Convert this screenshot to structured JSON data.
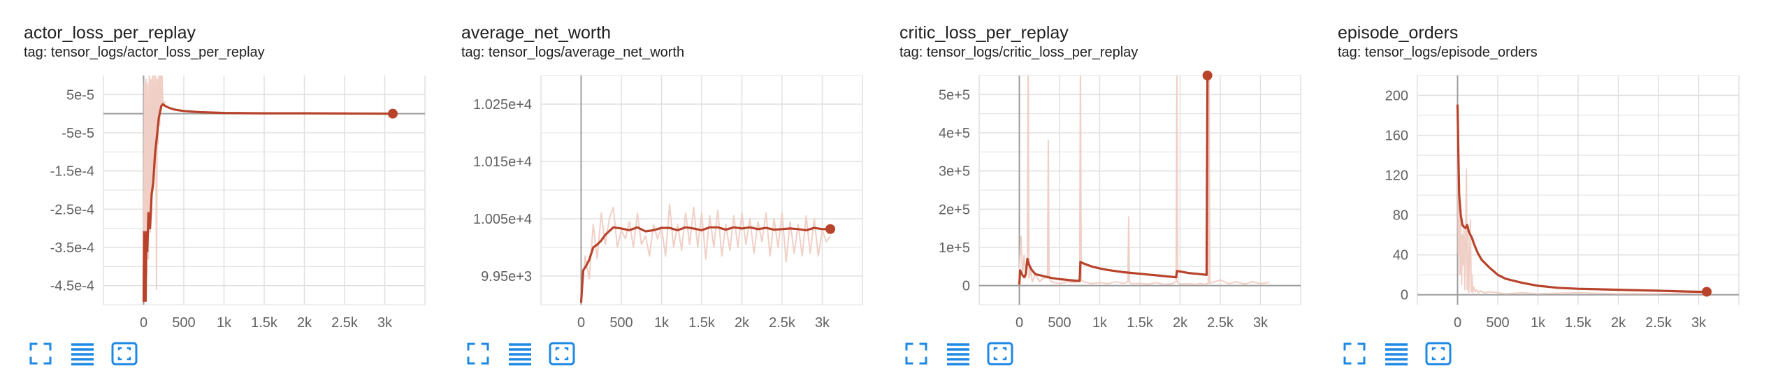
{
  "colors": {
    "smoothed": "#b8432b",
    "raw": "#f0cfc6",
    "grid": "#e0e0e0",
    "axis": "#9e9e9e",
    "tick_text": "#616161",
    "icon": "#1e88e5"
  },
  "toolbar_icons": [
    "fullscreen-icon",
    "toggle-log-scale-icon",
    "fit-domain-icon"
  ],
  "cards": [
    {
      "title": "actor_loss_per_replay",
      "tag": "tag: tensor_logs/actor_loss_per_replay",
      "x_ticks": [
        "0",
        "500",
        "1k",
        "1.5k",
        "2k",
        "2.5k",
        "3k"
      ],
      "y_ticks": [
        "5e-5",
        "-5e-5",
        "-1.5e-4",
        "-2.5e-4",
        "-3.5e-4",
        "-4.5e-4"
      ]
    },
    {
      "title": "average_net_worth",
      "tag": "tag: tensor_logs/average_net_worth",
      "x_ticks": [
        "0",
        "500",
        "1k",
        "1.5k",
        "2k",
        "2.5k",
        "3k"
      ],
      "y_ticks": [
        "1.025e+4",
        "1.015e+4",
        "1.005e+4",
        "9.95e+3"
      ]
    },
    {
      "title": "critic_loss_per_replay",
      "tag": "tag: tensor_logs/critic_loss_per_replay",
      "x_ticks": [
        "0",
        "500",
        "1k",
        "1.5k",
        "2k",
        "2.5k",
        "3k"
      ],
      "y_ticks": [
        "5e+5",
        "4e+5",
        "3e+5",
        "2e+5",
        "1e+5",
        "0"
      ]
    },
    {
      "title": "episode_orders",
      "tag": "tag: tensor_logs/episode_orders",
      "x_ticks": [
        "0",
        "500",
        "1k",
        "1.5k",
        "2k",
        "2.5k",
        "3k"
      ],
      "y_ticks": [
        "200",
        "160",
        "120",
        "80",
        "40",
        "0"
      ]
    }
  ],
  "chart_data": [
    {
      "type": "line",
      "title": "actor_loss_per_replay",
      "xlim": [
        -500,
        3500
      ],
      "ylim": [
        -0.0005,
        0.0001
      ],
      "yticks": [
        5e-05,
        -5e-05,
        -0.00015,
        -0.00025,
        -0.00035,
        -0.00045
      ],
      "xticks": [
        0,
        500,
        1000,
        1500,
        2000,
        2500,
        3000
      ],
      "grid": true,
      "series": [
        {
          "role": "raw",
          "x": [
            0,
            10,
            20,
            30,
            40,
            50,
            60,
            70,
            80,
            90,
            100,
            110,
            120,
            130,
            140,
            150,
            160,
            170,
            180,
            190,
            200,
            210,
            220,
            230,
            240,
            250,
            260,
            270
          ],
          "y": [
            -0.00049,
            8e-05,
            -0.00046,
            9e-05,
            -0.00042,
            8e-05,
            -0.00038,
            0.0001,
            -0.00031,
            9e-05,
            -0.00026,
            0.0001,
            -0.0002,
            0.00011,
            -0.00014,
            0.00011,
            -0.00046,
            9e-05,
            -8e-05,
            0.0001,
            -3e-05,
            0.00012,
            1e-05,
            0.0001,
            2e-05,
            3e-05,
            3e-05,
            3e-05
          ]
        },
        {
          "role": "smoothed",
          "x": [
            0,
            5,
            15,
            25,
            35,
            45,
            60,
            80,
            100,
            120,
            140,
            160,
            175,
            190,
            205,
            220,
            240,
            270,
            320,
            400,
            500,
            700,
            1000,
            1500,
            2000,
            2500,
            3000,
            3100
          ],
          "y": [
            -0.00049,
            -0.00031,
            -0.00037,
            -0.00049,
            -0.00031,
            -0.00036,
            -0.00026,
            -0.0003,
            -0.00021,
            -0.00018,
            -0.00011,
            -7e-05,
            -4e-05,
            -1e-05,
            5e-06,
            2e-05,
            2.5e-05,
            2e-05,
            1.5e-05,
            1e-05,
            7e-06,
            4e-06,
            2e-06,
            1e-06,
            1e-06,
            5e-07,
            2e-07,
            0.0
          ]
        }
      ]
    },
    {
      "type": "line",
      "title": "average_net_worth",
      "xlim": [
        -500,
        3500
      ],
      "ylim": [
        9900,
        10300
      ],
      "yticks": [
        10250,
        10150,
        10050,
        9950
      ],
      "xticks": [
        0,
        500,
        1000,
        1500,
        2000,
        2500,
        3000
      ],
      "grid": true,
      "series": [
        {
          "role": "raw",
          "x": [
            0,
            50,
            100,
            150,
            200,
            250,
            300,
            350,
            400,
            450,
            500,
            550,
            600,
            650,
            700,
            750,
            800,
            850,
            900,
            950,
            1000,
            1050,
            1100,
            1150,
            1200,
            1250,
            1300,
            1350,
            1400,
            1450,
            1500,
            1550,
            1600,
            1650,
            1700,
            1750,
            1800,
            1850,
            1900,
            1950,
            2000,
            2050,
            2100,
            2150,
            2200,
            2250,
            2300,
            2350,
            2400,
            2450,
            2500,
            2550,
            2600,
            2650,
            2700,
            2750,
            2800,
            2850,
            2900,
            2950,
            3000,
            3050,
            3100
          ],
          "y": [
            9905,
            9985,
            9945,
            10040,
            9980,
            10060,
            10005,
            10050,
            10070,
            10000,
            10030,
            10015,
            10045,
            10000,
            10060,
            10005,
            10020,
            9985,
            10040,
            10015,
            10035,
            9985,
            10075,
            10000,
            10040,
            9995,
            10060,
            10005,
            10070,
            10000,
            10060,
            9980,
            10055,
            10000,
            10065,
            9985,
            10040,
            9995,
            10055,
            10000,
            10060,
            10005,
            10050,
            9990,
            10045,
            10010,
            10060,
            9985,
            10050,
            10000,
            10060,
            9975,
            10045,
            9990,
            10040,
            9985,
            10055,
            9990,
            10050,
            9985,
            10030,
            10010,
            10020
          ]
        },
        {
          "role": "smoothed",
          "x": [
            0,
            25,
            50,
            100,
            150,
            200,
            250,
            300,
            400,
            500,
            600,
            700,
            800,
            900,
            1000,
            1100,
            1200,
            1300,
            1400,
            1500,
            1600,
            1700,
            1800,
            1900,
            2000,
            2100,
            2200,
            2300,
            2400,
            2500,
            2600,
            2700,
            2800,
            2900,
            3000,
            3100
          ],
          "y": [
            9905,
            9960,
            9965,
            9978,
            10000,
            10005,
            10012,
            10022,
            10035,
            10033,
            10030,
            10035,
            10028,
            10030,
            10034,
            10034,
            10030,
            10035,
            10033,
            10030,
            10035,
            10035,
            10031,
            10035,
            10033,
            10035,
            10032,
            10034,
            10031,
            10032,
            10033,
            10032,
            10030,
            10034,
            10032,
            10032
          ]
        }
      ]
    },
    {
      "type": "line",
      "title": "critic_loss_per_replay",
      "xlim": [
        -500,
        3500
      ],
      "ylim": [
        -50000,
        550000
      ],
      "yticks": [
        500000,
        400000,
        300000,
        200000,
        100000,
        0
      ],
      "xticks": [
        0,
        500,
        1000,
        1500,
        2000,
        2500,
        3000
      ],
      "grid": true,
      "series": [
        {
          "role": "raw",
          "x": [
            0,
            20,
            40,
            60,
            80,
            100,
            110,
            120,
            140,
            160,
            200,
            250,
            300,
            350,
            360,
            370,
            400,
            500,
            600,
            700,
            750,
            760,
            770,
            800,
            900,
            1000,
            1100,
            1200,
            1300,
            1350,
            1360,
            1370,
            1400,
            1500,
            1600,
            1700,
            1800,
            1900,
            1950,
            1960,
            1970,
            2000,
            2100,
            2200,
            2250,
            2300,
            2350,
            2360,
            2370,
            2400,
            2500,
            2600,
            2700,
            2800,
            2900,
            3000,
            3100
          ],
          "y": [
            40000,
            130000,
            30000,
            80000,
            20000,
            60000,
            600000,
            20000,
            40000,
            10000,
            30000,
            10000,
            20000,
            20000,
            380000,
            20000,
            10000,
            5000,
            10000,
            8000,
            20000,
            600000,
            15000,
            10000,
            5000,
            8000,
            5000,
            10000,
            6000,
            10000,
            180000,
            8000,
            5000,
            6000,
            4000,
            8000,
            3000,
            5000,
            10000,
            600000,
            8000,
            4000,
            5000,
            3000,
            6000,
            3000,
            6000,
            600000,
            6000,
            8000,
            15000,
            5000,
            10000,
            4000,
            10000,
            5000,
            8000
          ]
        },
        {
          "role": "smoothed",
          "x": [
            0,
            10,
            30,
            60,
            80,
            100,
            120,
            150,
            200,
            300,
            400,
            500,
            600,
            700,
            750,
            760,
            800,
            900,
            1000,
            1100,
            1200,
            1300,
            1400,
            1500,
            1600,
            1700,
            1800,
            1900,
            1950,
            1960,
            2000,
            2100,
            2200,
            2300,
            2330,
            2340
          ],
          "y": [
            5000,
            40000,
            30000,
            22000,
            30000,
            70000,
            55000,
            42000,
            30000,
            25000,
            20000,
            17000,
            15000,
            13000,
            12000,
            62000,
            58000,
            50000,
            45000,
            41000,
            38000,
            35000,
            33000,
            31000,
            29000,
            27000,
            25000,
            23000,
            22000,
            38000,
            37000,
            33000,
            31000,
            29000,
            28000,
            550000
          ]
        }
      ]
    },
    {
      "type": "line",
      "title": "episode_orders",
      "xlim": [
        -500,
        3500
      ],
      "ylim": [
        -10,
        220
      ],
      "yticks": [
        200,
        160,
        120,
        80,
        40,
        0
      ],
      "xticks": [
        0,
        500,
        1000,
        1500,
        2000,
        2500,
        3000
      ],
      "grid": true,
      "series": [
        {
          "role": "raw",
          "x": [
            0,
            10,
            20,
            30,
            40,
            50,
            60,
            70,
            80,
            90,
            100,
            110,
            120,
            130,
            140,
            150,
            160,
            170,
            180,
            190,
            200,
            220,
            240,
            260,
            280,
            300,
            350,
            400,
            500,
            600,
            800,
            1000,
            1500,
            2000,
            2500,
            3000,
            3100
          ],
          "y": [
            190,
            40,
            110,
            20,
            80,
            10,
            60,
            30,
            70,
            5,
            50,
            126,
            5,
            60,
            2,
            40,
            75,
            3,
            20,
            2,
            8,
            3,
            5,
            2,
            4,
            3,
            2,
            3,
            2,
            1,
            2,
            1,
            2,
            1,
            1,
            2,
            1
          ]
        },
        {
          "role": "smoothed",
          "x": [
            0,
            10,
            20,
            40,
            60,
            80,
            100,
            120,
            140,
            160,
            180,
            200,
            250,
            300,
            400,
            500,
            600,
            800,
            1000,
            1250,
            1500,
            2000,
            2500,
            3000,
            3100
          ],
          "y": [
            190,
            140,
            100,
            80,
            70,
            68,
            67,
            70,
            63,
            60,
            57,
            52,
            42,
            35,
            27,
            20,
            16,
            12,
            9,
            7,
            6,
            5,
            4,
            3,
            3
          ]
        }
      ]
    }
  ]
}
